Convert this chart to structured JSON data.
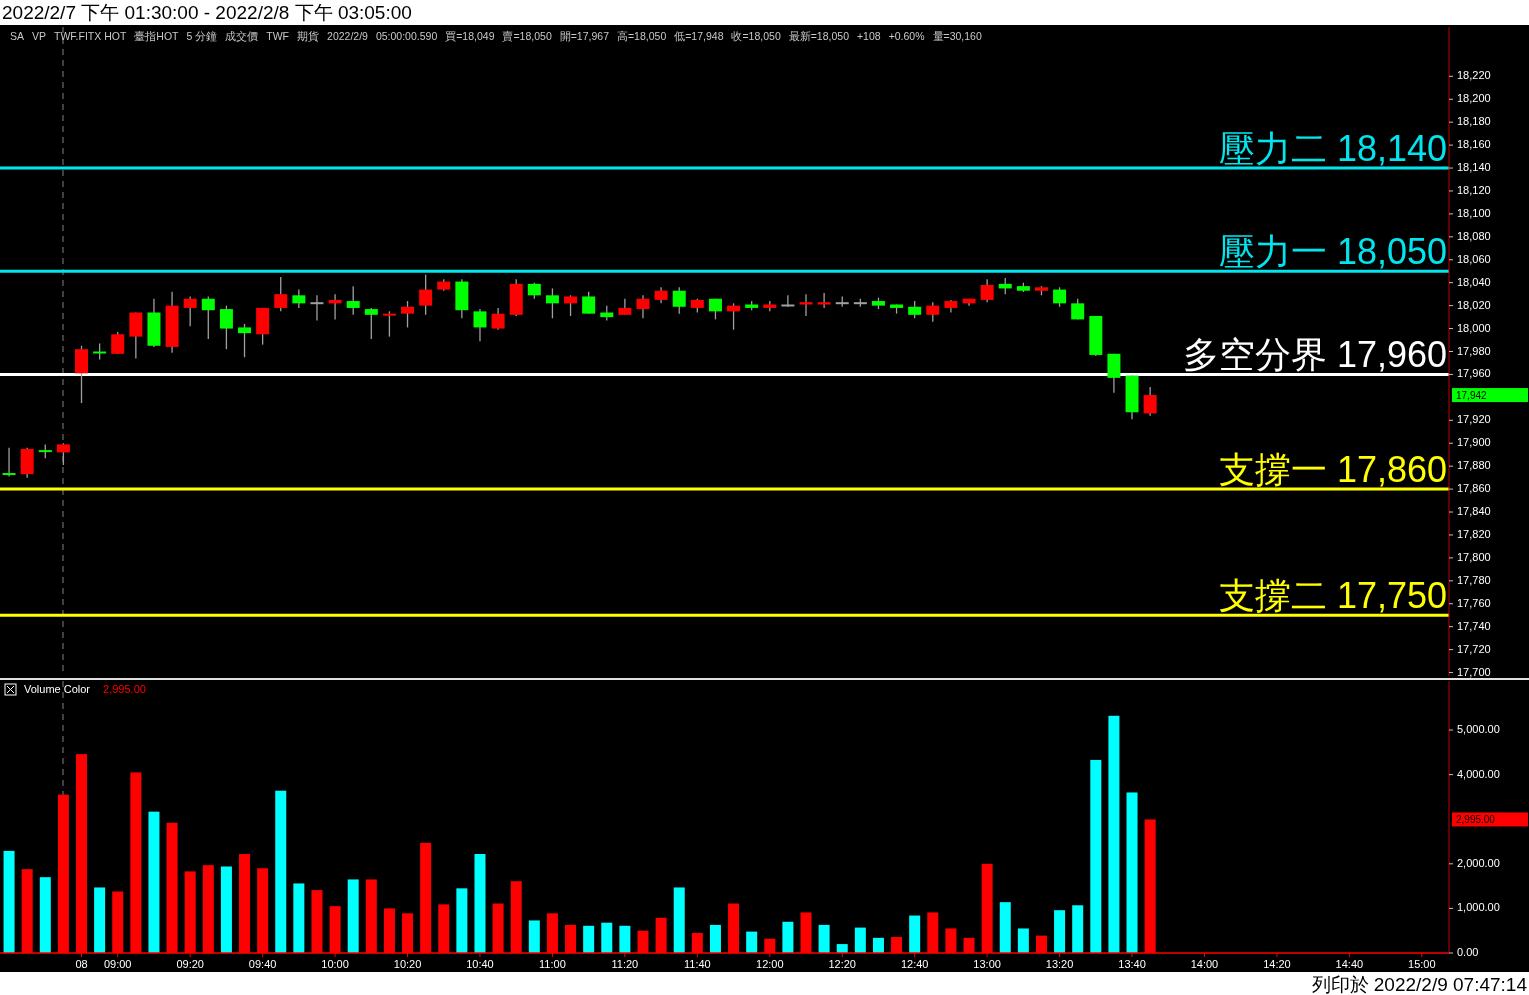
{
  "chart_data": [
    {
      "type": "candlestick",
      "title": "2022/2/7 下午 01:30:00 - 2022/2/8 下午 03:05:00",
      "categories": [
        null,
        null,
        null,
        null,
        null,
        null,
        null,
        null,
        null,
        null,
        null,
        null,
        null,
        null,
        null,
        null,
        null,
        null,
        null,
        null,
        null,
        null,
        null,
        null,
        null,
        null,
        null,
        null,
        null,
        null,
        null,
        null,
        null,
        null,
        null,
        null,
        null,
        null,
        null,
        null,
        null,
        null,
        null,
        null,
        null,
        null,
        null,
        null,
        null,
        null,
        null,
        null,
        null,
        null,
        null,
        null,
        null,
        null,
        null,
        null,
        null,
        null,
        null,
        null,
        null,
        null,
        null,
        null,
        null,
        null,
        null,
        null,
        null,
        null,
        null,
        null,
        null,
        null,
        null,
        null
      ],
      "ohlc": [
        [
          17874,
          17896,
          17871,
          17873
        ],
        [
          17873,
          17896,
          17870,
          17895
        ],
        [
          17894,
          17899,
          17887,
          17893
        ],
        [
          17892,
          17900,
          17881,
          17899
        ],
        [
          17961,
          17985,
          17935,
          17982
        ],
        [
          17980,
          17987,
          17973,
          17979
        ],
        [
          17978,
          17997,
          17978,
          17995
        ],
        [
          17993,
          18014,
          17974,
          18014
        ],
        [
          18014,
          18026,
          17984,
          17985
        ],
        [
          17984,
          18032,
          17979,
          18020
        ],
        [
          18018,
          18028,
          18002,
          18026
        ],
        [
          18026,
          18028,
          17991,
          18016
        ],
        [
          18017,
          18020,
          17982,
          18000
        ],
        [
          18001,
          18004,
          17975,
          17996
        ],
        [
          17995,
          18018,
          17986,
          18018
        ],
        [
          18018,
          18045,
          18015,
          18030
        ],
        [
          18029,
          18034,
          18018,
          18022
        ],
        [
          18023,
          18029,
          18007,
          18023
        ],
        [
          18022,
          18030,
          18008,
          18025
        ],
        [
          18024,
          18037,
          18012,
          18018
        ],
        [
          18017,
          18018,
          17991,
          18012
        ],
        [
          18012,
          18015,
          17993,
          18013
        ],
        [
          18013,
          18024,
          18001,
          18019
        ],
        [
          18020,
          18047,
          18012,
          18034
        ],
        [
          18034,
          18043,
          18033,
          18041
        ],
        [
          18041,
          18043,
          18009,
          18016
        ],
        [
          18015,
          18017,
          17989,
          18001
        ],
        [
          18000,
          18018,
          17999,
          18013
        ],
        [
          18012,
          18043,
          18011,
          18039
        ],
        [
          18039,
          18040,
          18026,
          18029
        ],
        [
          18029,
          18035,
          18009,
          18022
        ],
        [
          18022,
          18029,
          18011,
          18028
        ],
        [
          18028,
          18032,
          18013,
          18013
        ],
        [
          18014,
          18020,
          18007,
          18010
        ],
        [
          18012,
          18026,
          18012,
          18018
        ],
        [
          18017,
          18029,
          18009,
          18026
        ],
        [
          18025,
          18036,
          18022,
          18033
        ],
        [
          18033,
          18036,
          18013,
          18019
        ],
        [
          18018,
          18026,
          18014,
          18025
        ],
        [
          18026,
          18026,
          18008,
          18015
        ],
        [
          18015,
          18022,
          17999,
          18020
        ],
        [
          18021,
          18024,
          18016,
          18018
        ],
        [
          18018,
          18024,
          18015,
          18021
        ],
        [
          18021,
          18029,
          18019,
          18021
        ],
        [
          18021,
          18030,
          18011,
          18023
        ],
        [
          18021,
          18031,
          18018,
          18023
        ],
        [
          18023,
          18028,
          18019,
          18023
        ],
        [
          18023,
          18026,
          18019,
          18023
        ],
        [
          18024,
          18027,
          18017,
          18020
        ],
        [
          18021,
          18021,
          18013,
          18018
        ],
        [
          18019,
          18024,
          18009,
          18012
        ],
        [
          18012,
          18023,
          18006,
          18020
        ],
        [
          18018,
          18025,
          18014,
          18024
        ],
        [
          18022,
          18026,
          18020,
          18026
        ],
        [
          18025,
          18043,
          18023,
          18038
        ],
        [
          18039,
          18044,
          18030,
          18035
        ],
        [
          18037,
          18040,
          18032,
          18033
        ],
        [
          18033,
          18037,
          18029,
          18036
        ],
        [
          18034,
          18036,
          18019,
          18022
        ],
        [
          18022,
          18026,
          18008,
          18008
        ],
        [
          18011,
          18011,
          17976,
          17977
        ],
        [
          17978,
          17978,
          17944,
          17957
        ],
        [
          17959,
          17959,
          17921,
          17927
        ],
        [
          17926,
          17949,
          17924,
          17942
        ],
        null,
        null,
        null,
        null,
        null,
        null,
        null,
        null,
        null,
        null,
        null,
        null,
        null,
        null,
        null,
        null
      ],
      "colors": [
        "#00ff00",
        "#ff0000",
        "#00ff00",
        "#ff0000",
        "#ff0000",
        "#00ff00",
        "#ff0000",
        "#ff0000",
        "#00ff00",
        "#ff0000",
        "#ff0000",
        "#00ff00",
        "#00ff00",
        "#00ff00",
        "#ff0000",
        "#ff0000",
        "#00ff00",
        "#a0a0a0",
        "#ff0000",
        "#00ff00",
        "#00ff00",
        "#ff0000",
        "#ff0000",
        "#ff0000",
        "#ff0000",
        "#00ff00",
        "#00ff00",
        "#ff0000",
        "#ff0000",
        "#00ff00",
        "#00ff00",
        "#ff0000",
        "#00ff00",
        "#00ff00",
        "#ff0000",
        "#ff0000",
        "#ff0000",
        "#00ff00",
        "#ff0000",
        "#00ff00",
        "#ff0000",
        "#00ff00",
        "#ff0000",
        "#a0a0a0",
        "#ff0000",
        "#ff0000",
        "#a0a0a0",
        "#a0a0a0",
        "#00ff00",
        "#00ff00",
        "#00ff00",
        "#ff0000",
        "#ff0000",
        "#ff0000",
        "#ff0000",
        "#00ff00",
        "#00ff00",
        "#ff0000",
        "#00ff00",
        "#00ff00",
        "#00ff00",
        "#00ff00",
        "#00ff00",
        "#ff0000",
        null,
        null,
        null,
        null,
        null,
        null,
        null,
        null,
        null,
        null,
        null,
        null,
        null,
        null,
        null,
        null
      ],
      "ylim": [
        17697,
        18263
      ],
      "yticks": [
        {
          "value": 17700,
          "label": "17,700"
        },
        {
          "value": 17720,
          "label": "17,720"
        },
        {
          "value": 17740,
          "label": "17,740"
        },
        {
          "value": 17760,
          "label": "17,760"
        },
        {
          "value": 17780,
          "label": "17,780"
        },
        {
          "value": 17800,
          "label": "17,800"
        },
        {
          "value": 17820,
          "label": "17,820"
        },
        {
          "value": 17840,
          "label": "17,840"
        },
        {
          "value": 17860,
          "label": "17,860"
        },
        {
          "value": 17880,
          "label": "17,880"
        },
        {
          "value": 17900,
          "label": "17,900"
        },
        {
          "value": 17920,
          "label": "17,920"
        },
        {
          "value": 17960,
          "label": "17,960"
        },
        {
          "value": 17980,
          "label": "17,980"
        },
        {
          "value": 18000,
          "label": "18,000"
        },
        {
          "value": 18020,
          "label": "18,020"
        },
        {
          "value": 18040,
          "label": "18,040"
        },
        {
          "value": 18060,
          "label": "18,060"
        },
        {
          "value": 18080,
          "label": "18,080"
        },
        {
          "value": 18100,
          "label": "18,100"
        },
        {
          "value": 18120,
          "label": "18,120"
        },
        {
          "value": 18140,
          "label": "18,140"
        },
        {
          "value": 18160,
          "label": "18,160"
        },
        {
          "value": 18180,
          "label": "18,180"
        },
        {
          "value": 18200,
          "label": "18,200"
        },
        {
          "value": 18220,
          "label": "18,220"
        }
      ],
      "tick_labels": "y",
      "ref_lines": [
        {
          "axis": "y",
          "value": 18140,
          "label": "壓力二 18,140",
          "color": "#00e5ee"
        },
        {
          "axis": "y",
          "value": 18050,
          "label": "壓力一 18,050",
          "color": "#00e5ee"
        },
        {
          "axis": "y",
          "value": 17960,
          "label": "多空分界 17,960",
          "color": "#ffffff"
        },
        {
          "axis": "y",
          "value": 17860,
          "label": "支撐一 17,860",
          "color": "#ffff00"
        },
        {
          "axis": "y",
          "value": 17750,
          "label": "支撐二 17,750",
          "color": "#ffff00"
        }
      ],
      "annotations": [
        "SA",
        "VP",
        "TWF.FITX HOT",
        "臺指HOT",
        "5 分鐘",
        "成交價",
        "TWF",
        "期貨",
        "2022/2/9",
        "05:00:00.590",
        "買=18,049",
        "賣=18,050",
        "開=17,967",
        "高=18,050",
        "低=17,948",
        "收=18,050",
        "最新=18,050",
        "+108",
        "+0.60%",
        "量=30,160",
        "17,942",
        "列印於 2022/2/9 07:47:14"
      ]
    },
    {
      "type": "bar",
      "categories": [
        null,
        null,
        null,
        null,
        "08",
        null,
        "09:00",
        null,
        null,
        null,
        "09:20",
        null,
        null,
        null,
        "09:40",
        null,
        null,
        null,
        "10:00",
        null,
        null,
        null,
        "10:20",
        null,
        null,
        null,
        "10:40",
        null,
        null,
        null,
        "11:00",
        null,
        null,
        null,
        "11:20",
        null,
        null,
        null,
        "11:40",
        null,
        null,
        null,
        "12:00",
        null,
        null,
        null,
        "12:20",
        null,
        null,
        null,
        "12:40",
        null,
        null,
        null,
        "13:00",
        null,
        null,
        null,
        "13:20",
        null,
        null,
        null,
        "13:40",
        null,
        null,
        null,
        "14:00",
        null,
        null,
        null,
        "14:20",
        null,
        null,
        null,
        "14:40",
        null,
        null,
        null,
        "15:00",
        null
      ],
      "series": [
        {
          "name": "Volume Color",
          "values": [
            2290,
            1880,
            1700,
            3550,
            4460,
            1470,
            1380,
            4050,
            3170,
            2920,
            1830,
            1970,
            1940,
            2220,
            1900,
            3640,
            1560,
            1410,
            1050,
            1650,
            1650,
            1000,
            890,
            2470,
            1090,
            1450,
            2220,
            1110,
            1610,
            730,
            890,
            630,
            610,
            680,
            610,
            500,
            790,
            1470,
            450,
            630,
            1110,
            480,
            320,
            700,
            910,
            630,
            200,
            570,
            340,
            360,
            840,
            910,
            550,
            340,
            2000,
            1140,
            550,
            390,
            960,
            1070,
            4330,
            5320,
            3600,
            2995,
            null,
            null,
            null,
            null,
            null,
            null,
            null,
            null,
            null,
            null,
            null,
            null,
            null,
            null,
            null,
            null
          ],
          "colors": [
            "#00ffff",
            "#ff0000",
            "#00ffff",
            "#ff0000",
            "#ff0000",
            "#00ffff",
            "#ff0000",
            "#ff0000",
            "#00ffff",
            "#ff0000",
            "#ff0000",
            "#ff0000",
            "#00ffff",
            "#ff0000",
            "#ff0000",
            "#00ffff",
            "#00ffff",
            "#ff0000",
            "#ff0000",
            "#00ffff",
            "#ff0000",
            "#ff0000",
            "#ff0000",
            "#ff0000",
            "#ff0000",
            "#00ffff",
            "#00ffff",
            "#ff0000",
            "#ff0000",
            "#00ffff",
            "#ff0000",
            "#ff0000",
            "#00ffff",
            "#00ffff",
            "#00ffff",
            "#ff0000",
            "#ff0000",
            "#00ffff",
            "#ff0000",
            "#00ffff",
            "#ff0000",
            "#00ffff",
            "#ff0000",
            "#00ffff",
            "#ff0000",
            "#00ffff",
            "#00ffff",
            "#00ffff",
            "#00ffff",
            "#ff0000",
            "#00ffff",
            "#ff0000",
            "#ff0000",
            "#ff0000",
            "#ff0000",
            "#00ffff",
            "#00ffff",
            "#ff0000",
            "#00ffff",
            "#00ffff",
            "#00ffff",
            "#00ffff",
            "#00ffff",
            "#ff0000",
            null,
            null,
            null,
            null,
            null,
            null,
            null,
            null,
            null,
            null,
            null,
            null,
            null,
            null,
            null,
            null
          ]
        }
      ],
      "ylim": [
        0,
        6100
      ],
      "yticks": [
        {
          "value": 0,
          "label": "0.00"
        },
        {
          "value": 1000,
          "label": "1,000.00"
        },
        {
          "value": 2000,
          "label": "2,000.00"
        },
        {
          "value": 4000,
          "label": "4,000.00"
        },
        {
          "value": 5000,
          "label": "5,000.00"
        }
      ],
      "legend": "top left",
      "annotations": [
        "2,995.00",
        "2,995.00"
      ]
    }
  ]
}
